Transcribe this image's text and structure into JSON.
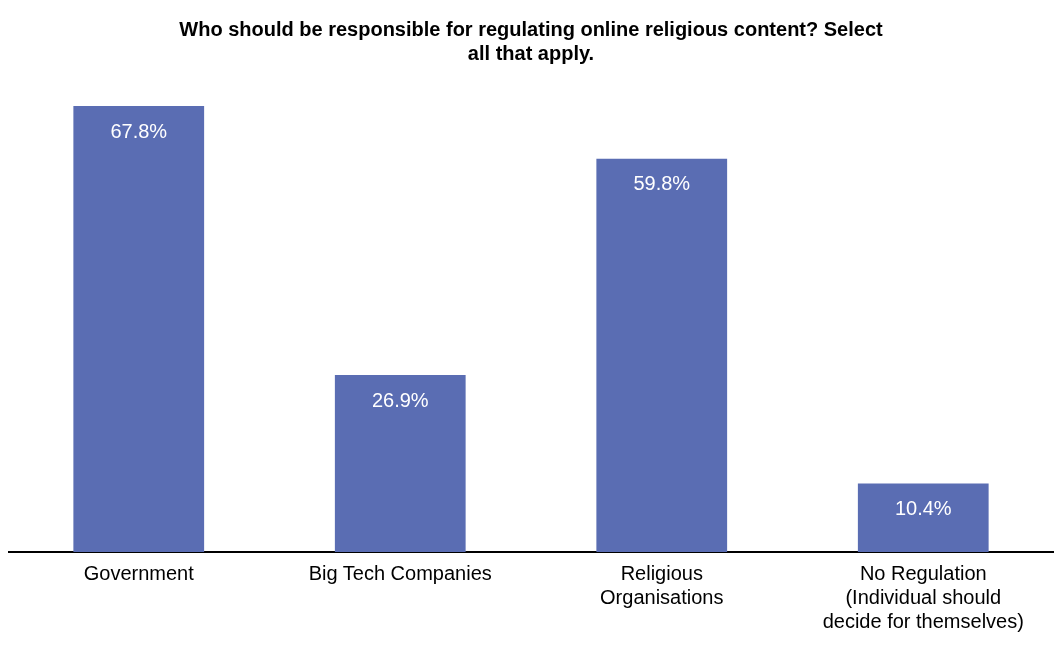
{
  "chart_data": {
    "type": "bar",
    "title": "Who should be responsible for regulating online religious content? Select all that apply.",
    "categories": [
      "Government",
      "Big Tech Companies",
      "Religious Organisations",
      "No Regulation (Individual should decide for themselves)"
    ],
    "values": [
      67.8,
      26.9,
      59.8,
      10.4
    ],
    "color": "#5a6db3",
    "data_labels": true,
    "value_labels": [
      "67.8%",
      "26.9%",
      "59.8%",
      "10.4%"
    ],
    "grid": false,
    "legend": false
  }
}
